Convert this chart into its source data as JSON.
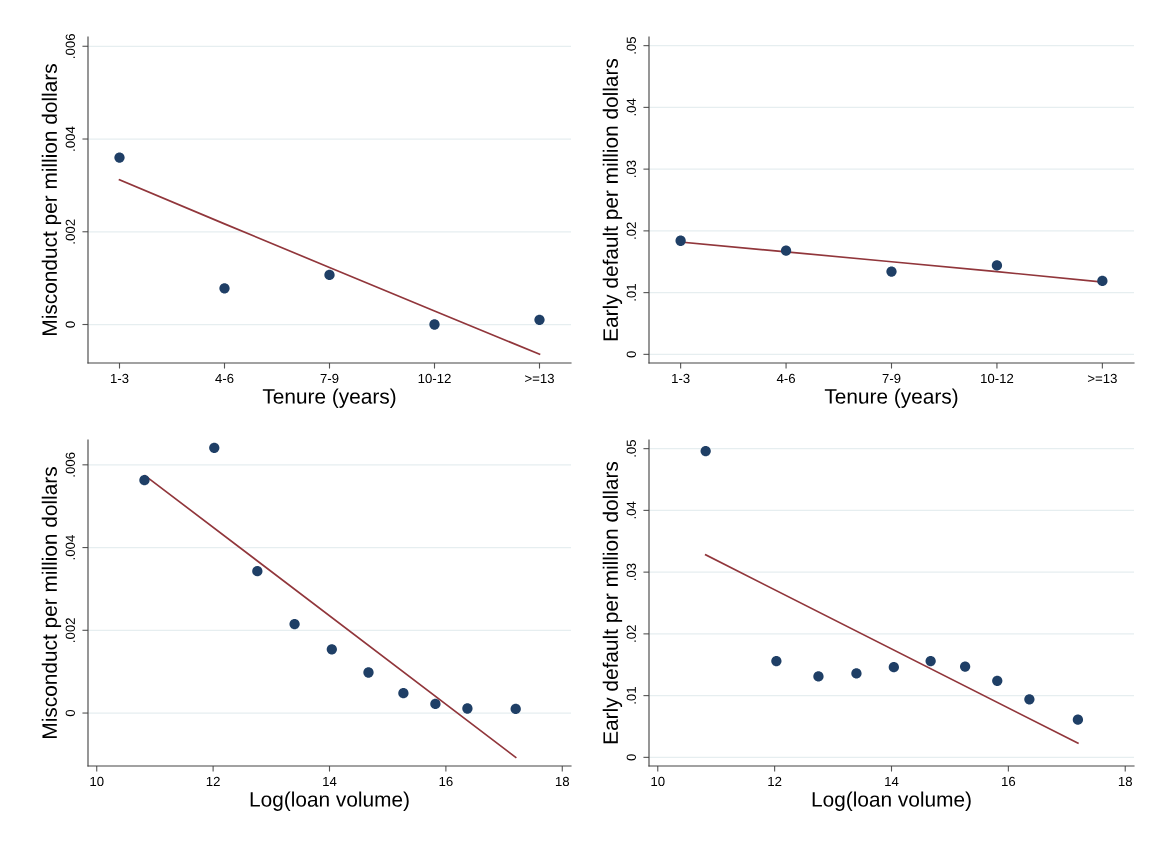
{
  "chart_data": [
    {
      "type": "scatter",
      "xlabel": "Tenure (years)",
      "ylabel": "Misconduct per million dollars",
      "categories": [
        "1-3",
        "4-6",
        "7-9",
        "10-12",
        ">=13"
      ],
      "ylim": [
        -0.00083,
        0.0062
      ],
      "yticks": [
        {
          "value": 0,
          "label": "0"
        },
        {
          "value": 0.002,
          "label": ".002"
        },
        {
          "value": 0.004,
          "label": ".004"
        },
        {
          "value": 0.006,
          "label": ".006"
        }
      ],
      "grid": "y",
      "series": [
        {
          "color": "#1f3f66",
          "marker": "circle",
          "values": [
            0.0036,
            0.00078,
            0.00107,
            0.0,
            0.0001
          ]
        },
        {
          "type": "line",
          "color": "#91363b",
          "values": [
            0.00312,
            0.00217,
            0.00123,
            0.00029,
            -0.00064
          ]
        }
      ]
    },
    {
      "type": "scatter",
      "xlabel": "Tenure (years)",
      "ylabel": "Early default per million dollars",
      "categories": [
        "1-3",
        "4-6",
        "7-9",
        "10-12",
        ">=13"
      ],
      "ylim": [
        -0.0014,
        0.0514
      ],
      "yticks": [
        {
          "value": 0,
          "label": "0"
        },
        {
          "value": 0.01,
          "label": ".01"
        },
        {
          "value": 0.02,
          "label": ".02"
        },
        {
          "value": 0.03,
          "label": ".03"
        },
        {
          "value": 0.04,
          "label": ".04"
        },
        {
          "value": 0.05,
          "label": ".05"
        }
      ],
      "grid": "y",
      "series": [
        {
          "color": "#1f3f66",
          "marker": "circle",
          "values": [
            0.0184,
            0.0168,
            0.0134,
            0.0144,
            0.0119
          ]
        },
        {
          "type": "line",
          "color": "#91363b",
          "values": [
            0.0182,
            0.0166,
            0.015,
            0.0134,
            0.0117
          ]
        }
      ]
    },
    {
      "type": "scatter",
      "xlabel": "Log(loan volume)",
      "ylabel": "Misconduct per million dollars",
      "xlim": [
        9.85,
        18.15
      ],
      "xticks": [
        10,
        12,
        14,
        16,
        18
      ],
      "ylim": [
        -0.00128,
        0.0066
      ],
      "yticks": [
        {
          "value": 0,
          "label": "0"
        },
        {
          "value": 0.002,
          "label": ".002"
        },
        {
          "value": 0.004,
          "label": ".004"
        },
        {
          "value": 0.006,
          "label": ".006"
        }
      ],
      "grid": "y",
      "series": [
        {
          "color": "#1f3f66",
          "marker": "circle",
          "x": [
            10.82,
            12.02,
            12.76,
            13.4,
            14.04,
            14.67,
            15.27,
            15.82,
            16.37,
            17.2
          ],
          "values": [
            0.00563,
            0.00641,
            0.00343,
            0.00215,
            0.00154,
            0.00098,
            0.00048,
            0.00022,
            0.00011,
            0.0001
          ]
        },
        {
          "type": "line",
          "color": "#91363b",
          "x": [
            10.83,
            17.2
          ],
          "values": [
            0.00574,
            -0.00107
          ]
        }
      ]
    },
    {
      "type": "scatter",
      "xlabel": "Log(loan volume)",
      "ylabel": "Early default per million dollars",
      "xlim": [
        9.85,
        18.15
      ],
      "xticks": [
        10,
        12,
        14,
        16,
        18
      ],
      "ylim": [
        -0.0014,
        0.0514
      ],
      "yticks": [
        {
          "value": 0,
          "label": "0"
        },
        {
          "value": 0.01,
          "label": ".01"
        },
        {
          "value": 0.02,
          "label": ".02"
        },
        {
          "value": 0.03,
          "label": ".03"
        },
        {
          "value": 0.04,
          "label": ".04"
        },
        {
          "value": 0.05,
          "label": ".05"
        }
      ],
      "grid": "y",
      "series": [
        {
          "color": "#1f3f66",
          "marker": "circle",
          "x": [
            10.82,
            12.03,
            12.75,
            13.4,
            14.04,
            14.67,
            15.26,
            15.81,
            16.36,
            17.19
          ],
          "values": [
            0.0496,
            0.0156,
            0.0131,
            0.0136,
            0.0146,
            0.0156,
            0.0147,
            0.0124,
            0.0094,
            0.0061
          ]
        },
        {
          "type": "line",
          "color": "#91363b",
          "x": [
            10.82,
            17.19
          ],
          "values": [
            0.0328,
            0.0023
          ]
        }
      ]
    }
  ]
}
